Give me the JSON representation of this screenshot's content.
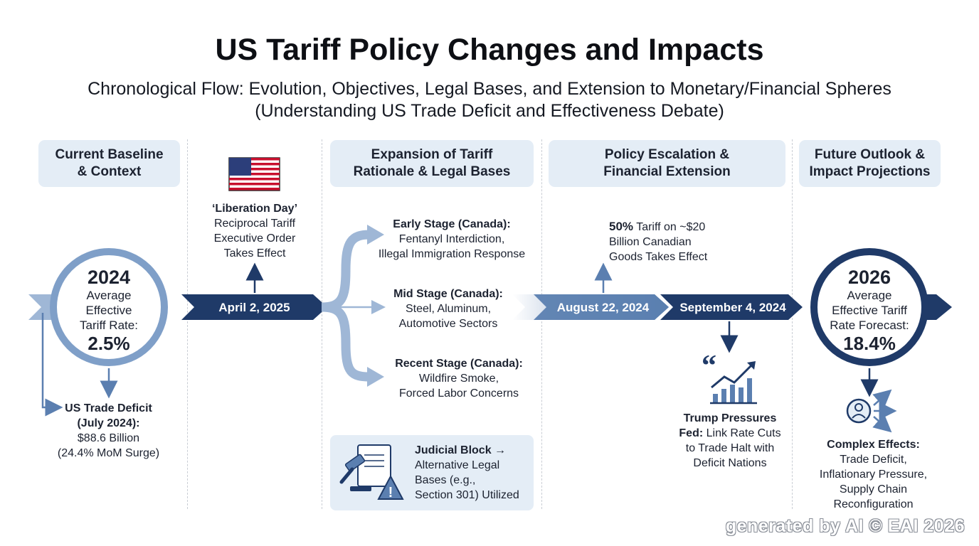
{
  "title": "US Tariff Policy Changes and Impacts",
  "subtitle_line1": "Chronological Flow: Evolution, Objectives, Legal Bases, and Extension to Monetary/Financial Spheres",
  "subtitle_line2": "(Understanding US Trade Deficit and Effectiveness Debate)",
  "headers": {
    "baseline": [
      "Current Baseline",
      "& Context"
    ],
    "expansion": [
      "Expansion of Tariff",
      "Rationale & Legal Bases"
    ],
    "escalation": [
      "Policy Escalation &",
      "Financial Extension"
    ],
    "outlook": [
      "Future Outlook &",
      "Impact Projections"
    ]
  },
  "baseline_circle": {
    "year": "2024",
    "label": [
      "Average",
      "Effective",
      "Tariff Rate:"
    ],
    "value": "2.5%"
  },
  "trade_deficit": {
    "title1": "US Trade Deficit",
    "title2": "(July 2024):",
    "line1": "$88.6 Billion",
    "line2": "(24.4% MoM Surge)"
  },
  "liberation": {
    "title": "‘Liberation Day’",
    "lines": [
      "Reciprocal Tariff",
      "Executive Order",
      "Takes Effect"
    ]
  },
  "dates": {
    "d1": "April 2, 2025",
    "d2": "August 22, 2024",
    "d3": "September 4, 2024"
  },
  "stages": {
    "early": {
      "title": "Early Stage (Canada):",
      "lines": [
        "Fentanyl Interdiction,",
        "Illegal Immigration Response"
      ]
    },
    "mid": {
      "title": "Mid Stage (Canada):",
      "lines": [
        "Steel, Aluminum,",
        "Automotive Sectors"
      ]
    },
    "recent": {
      "title": "Recent Stage (Canada):",
      "lines": [
        "Wildfire Smoke,",
        "Forced Labor Concerns"
      ]
    }
  },
  "judicial": {
    "title": "Judicial Block →",
    "lines": [
      "Alternative Legal",
      "Bases (e.g.,",
      "Section 301) Utilized"
    ]
  },
  "tariff_50": {
    "bold": "50%",
    "rest": " Tariff on ~$20",
    "lines": [
      "Billion Canadian",
      "Goods Takes Effect"
    ]
  },
  "trump": {
    "bold1": "Trump Pressures",
    "bold2": "Fed:",
    "rest2": " Link Rate Cuts",
    "lines": [
      "to Trade Halt with",
      "Deficit Nations"
    ]
  },
  "outlook_circle": {
    "year": "2026",
    "label": [
      "Average",
      "Effective Tariff",
      "Rate Forecast:"
    ],
    "value": "18.4%"
  },
  "complex": {
    "title": "Complex Effects:",
    "lines": [
      "Trade Deficit,",
      "Inflationary Pressure,",
      "Supply Chain",
      "Reconfiguration"
    ]
  },
  "watermark": "generated by AI © EAI 2026",
  "colors": {
    "navy": "#1f3a68",
    "mid_blue": "#5b7fb0",
    "light_blue": "#9fb7d6",
    "panel": "#e4edf6"
  }
}
